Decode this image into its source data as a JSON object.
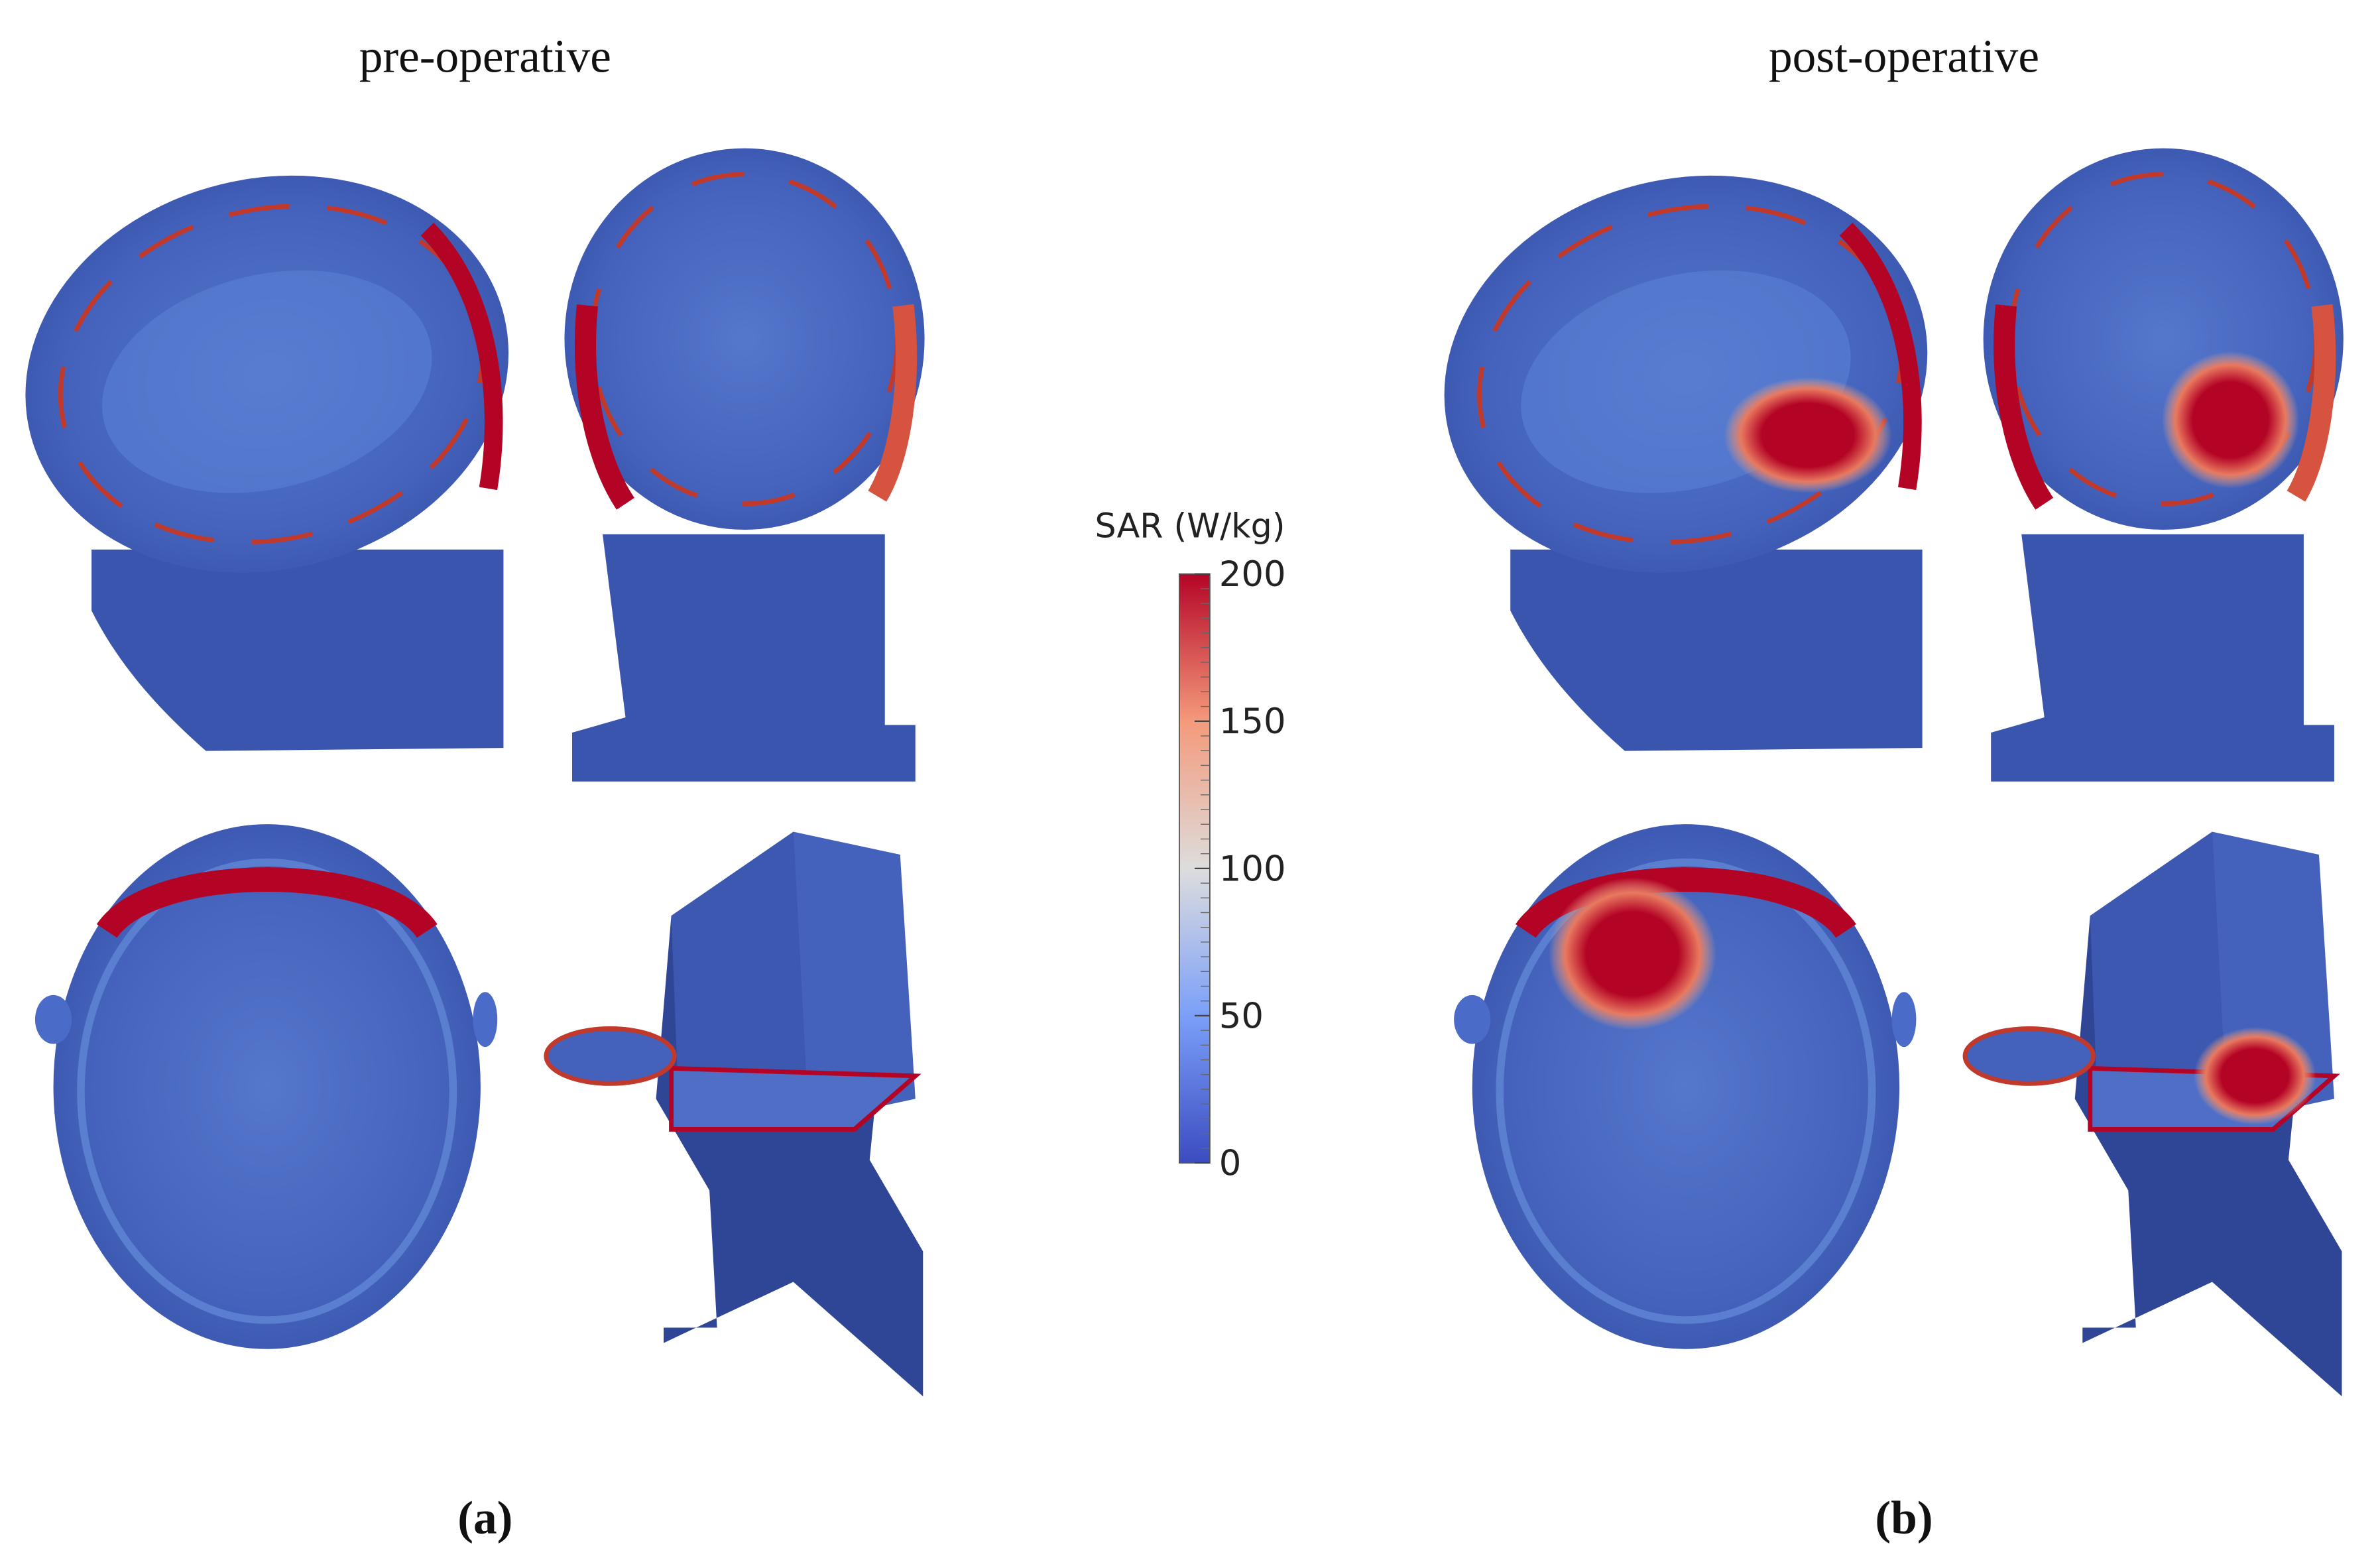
{
  "panels": [
    {
      "title": "pre-operative",
      "label": "(a)"
    },
    {
      "title": "post-operative",
      "label": "(b)"
    }
  ],
  "colorbar": {
    "label": "SAR (W/kg)",
    "lim": [
      0,
      200
    ],
    "ticks": [
      0,
      50,
      100,
      150,
      200
    ]
  }
}
